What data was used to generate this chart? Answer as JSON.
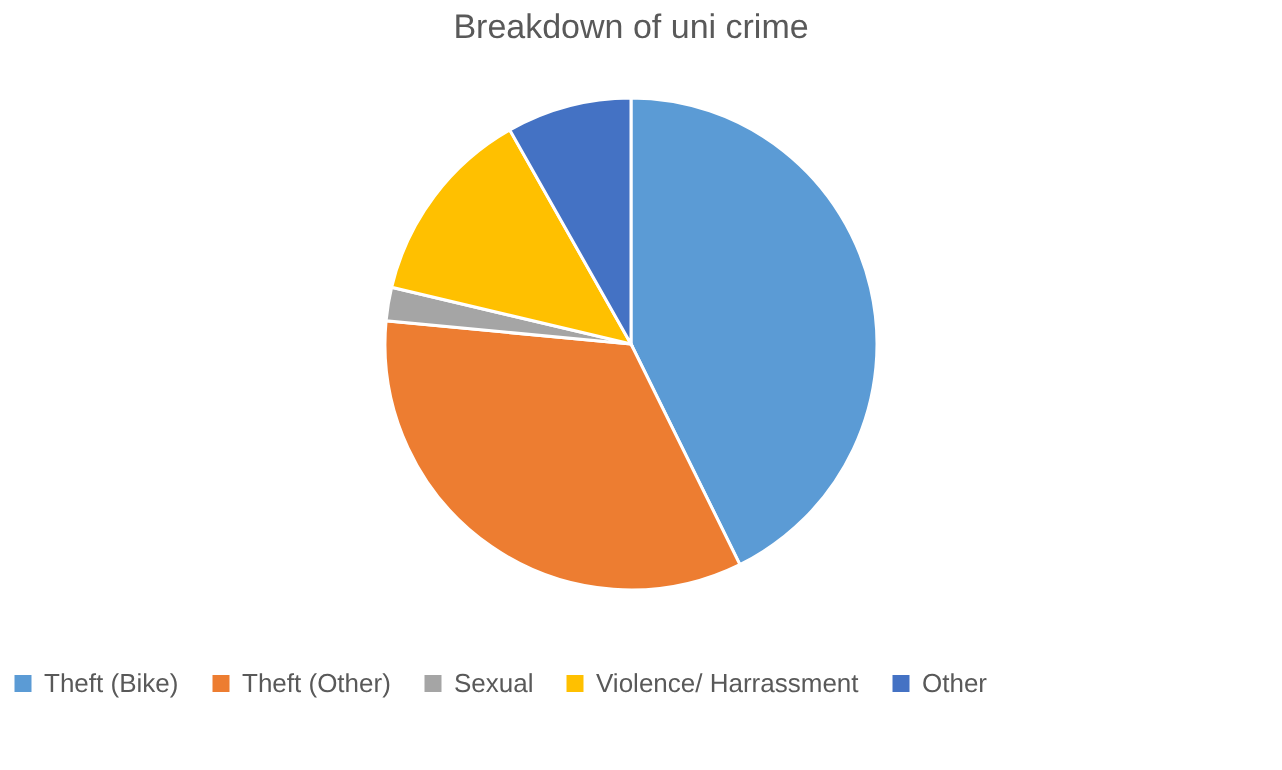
{
  "chart_data": {
    "type": "pie",
    "title": "Breakdown of uni crime",
    "categories": [
      "Theft (Bike)",
      "Theft (Other)",
      "Sexual",
      "Violence/ Harrassment",
      "Other"
    ],
    "values": [
      42.7,
      33.8,
      2.2,
      13.1,
      8.2
    ],
    "colors": [
      "#5b9bd5",
      "#ed7d31",
      "#a5a5a5",
      "#ffc000",
      "#4472c4"
    ],
    "legend": "bottom"
  }
}
